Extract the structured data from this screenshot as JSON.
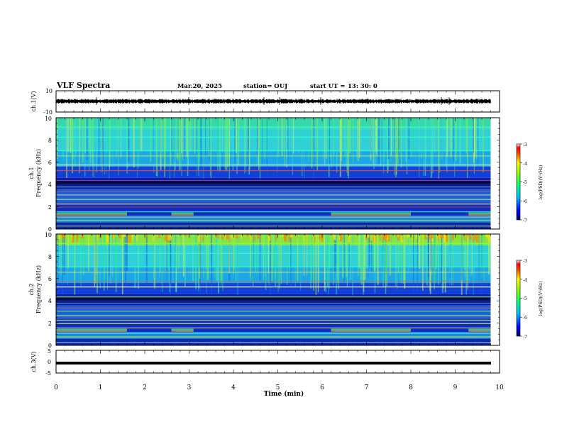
{
  "header": {
    "title": "VLF Spectra",
    "date": "Mar.20, 2025",
    "station": "station= OUJ",
    "start_label": "start UT =",
    "start_time": "13: 30: 0"
  },
  "chart_data": [
    {
      "type": "line",
      "panel": "ch1-waveform",
      "ylabel": "ch.1(V)",
      "ylim": [
        -10,
        10
      ],
      "y_ticks": [
        "10",
        "-10"
      ],
      "xlim": [
        0,
        10
      ],
      "note": "dense noise trace near 0 V",
      "series_color": "#000000"
    },
    {
      "type": "heatmap",
      "panel": "ch1-spectrogram",
      "ylabel": "ch.1",
      "ylabel2": "Frequency (kHz)",
      "ylim": [
        0,
        10
      ],
      "y_ticks": [
        "0",
        "2",
        "4",
        "6",
        "8",
        "10"
      ],
      "xlim": [
        0,
        10
      ],
      "colorbar": {
        "label": "log(PSD)(V²/Hz)",
        "ticks": [
          "-3",
          "-4",
          "-5",
          "-6",
          "-7"
        ],
        "range": [
          -7,
          -3
        ]
      }
    },
    {
      "type": "heatmap",
      "panel": "ch2-spectrogram",
      "ylabel": "ch.2",
      "ylabel2": "Frequency (kHz)",
      "ylim": [
        0,
        10
      ],
      "y_ticks": [
        "0",
        "2",
        "4",
        "6",
        "8",
        "10"
      ],
      "xlim": [
        0,
        10
      ],
      "colorbar": {
        "label": "log(PSD)(V²/Hz)",
        "ticks": [
          "-3",
          "-4",
          "-5",
          "-6",
          "-7"
        ],
        "range": [
          -7,
          -3
        ]
      }
    },
    {
      "type": "line",
      "panel": "ch3-waveform",
      "ylabel": "ch.3(V)",
      "ylim": [
        -5,
        5
      ],
      "y_ticks": [
        "5",
        "0",
        "-5"
      ],
      "xlim": [
        0,
        10
      ],
      "note": "flat thick trace at about -1.6 V",
      "series_color": "#000000"
    }
  ],
  "x_axis": {
    "label": "Time (min)",
    "ticks": [
      "0",
      "1",
      "2",
      "3",
      "4",
      "5",
      "6",
      "7",
      "8",
      "9",
      "10"
    ],
    "data_end": 9.8
  },
  "colors": {
    "frame": "#000000",
    "background": "#ffffff"
  }
}
